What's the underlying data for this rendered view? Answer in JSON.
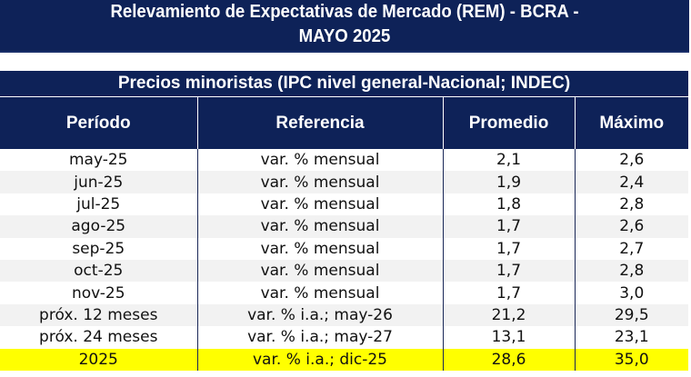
{
  "title": {
    "line1": "Relevamiento de Expectativas de Mercado (REM)  - BCRA -",
    "line2": "MAYO 2025"
  },
  "table": {
    "caption": "Precios minoristas (IPC nivel general-Nacional; INDEC)",
    "headers": [
      "Período",
      "Referencia",
      "Promedio",
      "Máximo"
    ],
    "rows": [
      [
        "may-25",
        "var. % mensual",
        "2,1",
        "2,6"
      ],
      [
        "jun-25",
        "var. % mensual",
        "1,9",
        "2,4"
      ],
      [
        "jul-25",
        "var. % mensual",
        "1,8",
        "2,8"
      ],
      [
        "ago-25",
        "var. % mensual",
        "1,7",
        "2,6"
      ],
      [
        "sep-25",
        "var. % mensual",
        "1,7",
        "2,7"
      ],
      [
        "oct-25",
        "var. % mensual",
        "1,7",
        "2,8"
      ],
      [
        "nov-25",
        "var. % mensual",
        "1,7",
        "3,0"
      ],
      [
        "próx. 12 meses",
        "var. % i.a.; may-26",
        "21,2",
        "29,5"
      ],
      [
        "próx. 24 meses",
        "var. % i.a.; may-27",
        "13,1",
        "23,1"
      ],
      [
        "2025",
        "var. % i.a.; dic-25",
        "28,6",
        "35,0"
      ]
    ]
  },
  "colors": {
    "navy": "#0e2258",
    "highlight": "#ffff00",
    "stripe": "#f2f2f2"
  }
}
